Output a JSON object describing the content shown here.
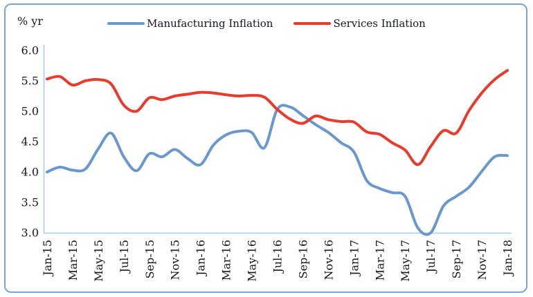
{
  "header": {
    "unit_label": "% yr"
  },
  "legend": [
    {
      "label": "Manufacturing Inflation",
      "color": "#6a98ce"
    },
    {
      "label": "Services Inflation",
      "color": "#e93a2b"
    }
  ],
  "colors": {
    "frame_border": "#76a4da",
    "axis_line": "#a8cbea",
    "text": "#15151f",
    "background": "#ffffff"
  },
  "chart_data": {
    "type": "line",
    "title": "",
    "ylabel": "% yr",
    "xlabel": "",
    "ylim": [
      3.0,
      6.0
    ],
    "y_tick_labels": [
      "3.0",
      "3.5",
      "4.0",
      "4.5",
      "5.0",
      "5.5",
      "6.0"
    ],
    "y_ticks": [
      3.0,
      3.5,
      4.0,
      4.5,
      5.0,
      5.5,
      6.0
    ],
    "grid": false,
    "legend_position": "top-center",
    "x_label_rotation_deg": 90,
    "x": [
      "Jan-15",
      "Feb-15",
      "Mar-15",
      "Apr-15",
      "May-15",
      "Jun-15",
      "Jul-15",
      "Aug-15",
      "Sep-15",
      "Oct-15",
      "Nov-15",
      "Dec-15",
      "Jan-16",
      "Feb-16",
      "Mar-16",
      "Apr-16",
      "May-16",
      "Jun-16",
      "Jul-16",
      "Aug-16",
      "Sep-16",
      "Oct-16",
      "Nov-16",
      "Dec-16",
      "Jan-17",
      "Feb-17",
      "Mar-17",
      "Apr-17",
      "May-17",
      "Jun-17",
      "Jul-17",
      "Aug-17",
      "Sep-17",
      "Oct-17",
      "Nov-17",
      "Dec-17",
      "Jan-18"
    ],
    "x_axis_tick_labels": [
      "Jan-15",
      "Mar-15",
      "May-15",
      "Jul-15",
      "Sep-15",
      "Nov-15",
      "Jan-16",
      "Mar-16",
      "May-16",
      "Jul-16",
      "Sep-16",
      "Nov-16",
      "Jan-17",
      "Mar-17",
      "May-17",
      "Jul-17",
      "Sep-17",
      "Nov-17",
      "Jan-18"
    ],
    "x_tick_every_n_months": 2,
    "series": [
      {
        "name": "Manufacturing Inflation",
        "color": "#6a98ce",
        "values": [
          4.0,
          4.08,
          4.03,
          4.05,
          4.38,
          4.64,
          4.25,
          4.02,
          4.3,
          4.25,
          4.37,
          4.22,
          4.12,
          4.44,
          4.61,
          4.67,
          4.65,
          4.4,
          5.03,
          5.07,
          4.93,
          4.78,
          4.65,
          4.48,
          4.33,
          3.86,
          3.73,
          3.66,
          3.6,
          3.08,
          3.0,
          3.44,
          3.6,
          3.75,
          4.01,
          4.25,
          4.27
        ]
      },
      {
        "name": "Services Inflation",
        "color": "#e93a2b",
        "values": [
          5.53,
          5.57,
          5.43,
          5.5,
          5.52,
          5.45,
          5.1,
          5.0,
          5.22,
          5.19,
          5.25,
          5.28,
          5.31,
          5.3,
          5.27,
          5.25,
          5.26,
          5.23,
          5.03,
          4.87,
          4.8,
          4.92,
          4.86,
          4.83,
          4.82,
          4.66,
          4.62,
          4.48,
          4.36,
          4.12,
          4.42,
          4.68,
          4.64,
          5.01,
          5.3,
          5.52,
          5.67
        ]
      }
    ]
  }
}
